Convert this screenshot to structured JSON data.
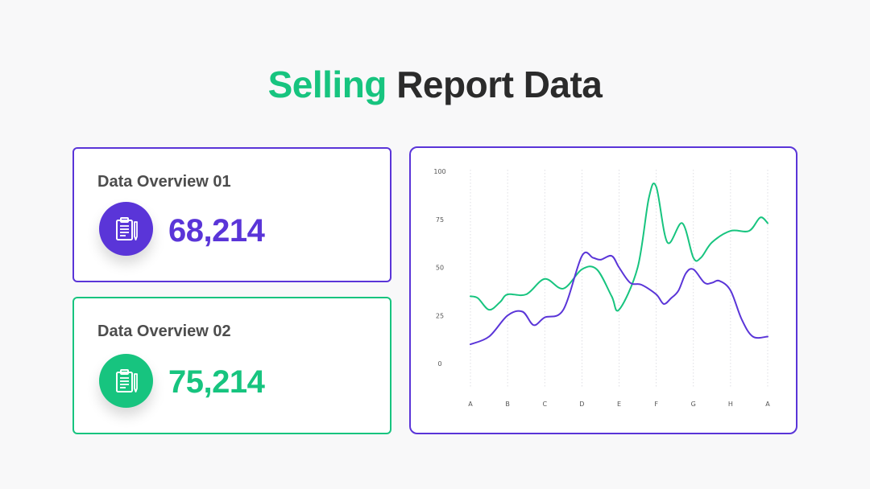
{
  "header": {
    "title_accent": "Selling",
    "title_rest": "Report Data"
  },
  "cards": [
    {
      "title": "Data Overview 01",
      "value": "68,214",
      "icon": "clipboard-icon",
      "color": "#5a35d8"
    },
    {
      "title": "Data Overview 02",
      "value": "75,214",
      "icon": "clipboard-icon",
      "color": "#17c47f"
    }
  ],
  "colors": {
    "purple": "#5a35d8",
    "green": "#17c47f",
    "chart_border": "#5a35d8"
  },
  "chart_data": {
    "type": "line",
    "categories": [
      "A",
      "B",
      "C",
      "D",
      "E",
      "F",
      "G",
      "H",
      "A"
    ],
    "ylim": [
      0,
      100
    ],
    "yticks": [
      "0",
      "25",
      "50",
      "75",
      "100"
    ],
    "grid": "vertical-dotted",
    "series": [
      {
        "color": "#17c47f",
        "x": [
          0,
          0.2,
          0.5,
          0.8,
          1.0,
          1.5,
          2.0,
          2.5,
          3.0,
          3.4,
          3.8,
          4.0,
          4.5,
          4.8,
          5.0,
          5.3,
          5.7,
          6.0,
          6.2,
          6.5,
          7.0,
          7.5,
          7.8,
          8.0
        ],
        "values": [
          35,
          34,
          28,
          32,
          36,
          36,
          44,
          39,
          49,
          49,
          35,
          28,
          50,
          86,
          92,
          63,
          73,
          55,
          55,
          63,
          69,
          69,
          76,
          73
        ]
      },
      {
        "color": "#5a35d8",
        "x": [
          0,
          0.5,
          1.0,
          1.4,
          1.7,
          2.0,
          2.5,
          3.0,
          3.3,
          3.5,
          3.8,
          4.0,
          4.3,
          4.6,
          5.0,
          5.2,
          5.4,
          5.6,
          5.8,
          6.0,
          6.3,
          6.5,
          6.7,
          7.0,
          7.3,
          7.6,
          8.0
        ],
        "values": [
          10,
          14,
          25,
          27,
          20,
          24,
          28,
          56,
          55,
          54,
          56,
          50,
          42,
          41,
          36,
          31,
          34,
          38,
          47,
          49,
          42,
          42,
          43,
          38,
          23,
          14,
          14
        ]
      }
    ]
  }
}
